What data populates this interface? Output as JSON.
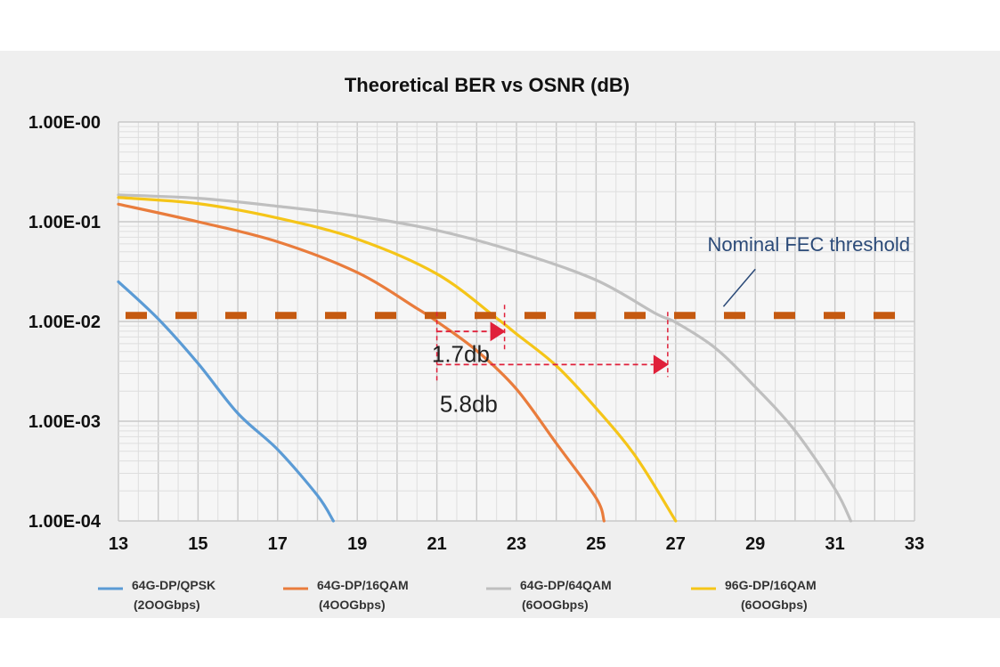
{
  "chart_data": {
    "type": "line",
    "title": "Theoretical BER vs OSNR (dB)",
    "xlabel": "",
    "ylabel": "",
    "x_ticks": [
      "13",
      "15",
      "17",
      "19",
      "21",
      "23",
      "25",
      "27",
      "29",
      "31",
      "33"
    ],
    "y_ticks": [
      "1.00E-00",
      "1.00E-01",
      "1.00E-02",
      "1.00E-03",
      "1.00E-04"
    ],
    "xlim": [
      13,
      33
    ],
    "ylim": [
      0.0001,
      1
    ],
    "y_scale": "log",
    "grid": true,
    "series": [
      {
        "name": "64G-DP/QPSK",
        "sub": "(2OOGbps)",
        "color": "#5b9bd5",
        "points": [
          [
            13,
            0.025
          ],
          [
            14,
            0.0106
          ],
          [
            15,
            0.0038
          ],
          [
            16,
            0.0012
          ],
          [
            17,
            0.00052
          ],
          [
            18,
            0.00018
          ],
          [
            18.4,
            0.0001
          ]
        ]
      },
      {
        "name": "64G-DP/16QAM",
        "sub": "(4OOGbps)",
        "color": "#e97c3c",
        "points": [
          [
            13,
            0.15
          ],
          [
            15,
            0.1
          ],
          [
            17,
            0.063
          ],
          [
            19,
            0.031
          ],
          [
            20.5,
            0.0135
          ],
          [
            21,
            0.01
          ],
          [
            22,
            0.0051
          ],
          [
            23,
            0.0021
          ],
          [
            24,
            0.0006
          ],
          [
            25,
            0.00017
          ],
          [
            25.2,
            0.0001
          ]
        ]
      },
      {
        "name": "64G-DP/64QAM",
        "sub": "(6OOGbps)",
        "color": "#bfbfbf",
        "points": [
          [
            13,
            0.186
          ],
          [
            15,
            0.172
          ],
          [
            17,
            0.143
          ],
          [
            19,
            0.114
          ],
          [
            21,
            0.082
          ],
          [
            23,
            0.05
          ],
          [
            25,
            0.026
          ],
          [
            26.5,
            0.012
          ],
          [
            27,
            0.0098
          ],
          [
            28,
            0.0054
          ],
          [
            29,
            0.0022
          ],
          [
            30,
            0.0008
          ],
          [
            31,
            0.00021
          ],
          [
            31.4,
            0.0001
          ]
        ]
      },
      {
        "name": "96G-DP/16QAM",
        "sub": "(6OOGbps)",
        "color": "#f5c518",
        "points": [
          [
            13,
            0.175
          ],
          [
            15,
            0.152
          ],
          [
            17,
            0.109
          ],
          [
            19,
            0.067
          ],
          [
            21,
            0.03
          ],
          [
            22.5,
            0.0108
          ],
          [
            23,
            0.0075
          ],
          [
            24,
            0.0036
          ],
          [
            25,
            0.00135
          ],
          [
            26,
            0.00044
          ],
          [
            27,
            0.0001
          ]
        ]
      }
    ],
    "threshold": {
      "label": "Nominal FEC threshold",
      "y": 0.0115,
      "color": "#c55a11"
    },
    "annotations": [
      {
        "text": "1.7db",
        "from_x": 21,
        "to_x": 22.7,
        "label_x": 21.6,
        "label_y": 0.0047
      },
      {
        "text": "5.8db",
        "from_x": 21,
        "to_x": 26.8,
        "label_x": 21.8,
        "label_y": 0.0015
      }
    ]
  }
}
